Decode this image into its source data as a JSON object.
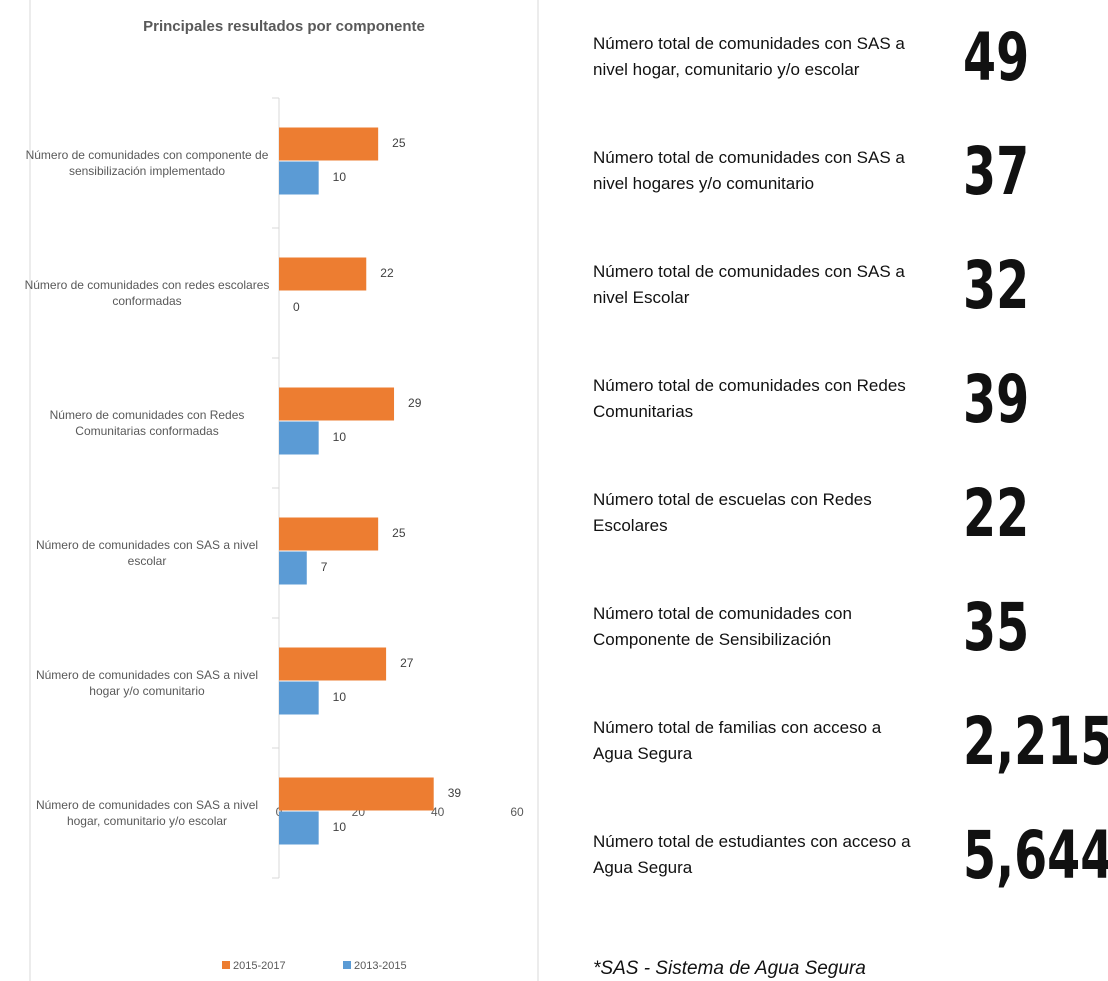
{
  "chart_data": {
    "type": "bar",
    "orientation": "horizontal",
    "title": "Principales resultados por componente",
    "categories": [
      "Número de comunidades con componente de sensibilización implementado",
      "Número de comunidades con redes escolares conformadas",
      "Número de comunidades con Redes Comunitarias conformadas",
      "Número de comunidades con SAS a  nivel escolar",
      "Número de comunidades con SAS a  nivel hogar y/o comunitario",
      "Número de comunidades con SAS a nivel hogar, comunitario y/o escolar"
    ],
    "series": [
      {
        "name": "2015-2017",
        "color": "#ed7d31",
        "values": [
          25,
          22,
          29,
          25,
          27,
          39
        ]
      },
      {
        "name": "2013-2015",
        "color": "#5b9bd5",
        "values": [
          10,
          0,
          10,
          7,
          10,
          10
        ]
      }
    ],
    "xlim": [
      0,
      60
    ],
    "xticks": [
      0,
      20,
      40,
      60
    ],
    "grid": false,
    "legend": "bottom"
  },
  "stats": [
    {
      "label": "Número total de comunidades con SAS a nivel hogar, comunitario y/o escolar",
      "value": "49"
    },
    {
      "label": "Número total de comunidades con SAS a nivel hogares y/o comunitario",
      "value": "37"
    },
    {
      "label": "Número total de comunidades con SAS a nivel Escolar",
      "value": "32"
    },
    {
      "label": "Número total de comunidades con Redes Comunitarias",
      "value": "39"
    },
    {
      "label": "Número total de escuelas con Redes Escolares",
      "value": "22"
    },
    {
      "label": "Número total de comunidades con Componente de Sensibilización",
      "value": "35"
    },
    {
      "label": "Número total de familias con acceso a Agua Segura",
      "value": "2,215"
    },
    {
      "label": "Número total de estudiantes con acceso a Agua Segura",
      "value": "5,644"
    }
  ],
  "footnote": "*SAS - Sistema de Agua Segura"
}
